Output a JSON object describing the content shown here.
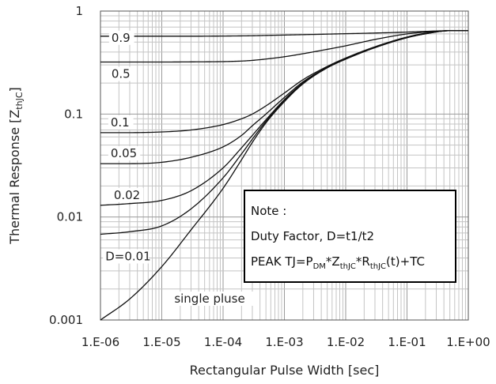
{
  "chart_data": {
    "type": "line",
    "xscale": "log",
    "yscale": "log",
    "xlim": [
      1e-06,
      1
    ],
    "ylim": [
      0.001,
      1
    ],
    "xlabel": "Rectangular Pulse Width [sec]",
    "ylabel_main": "Thermal Response [Z",
    "ylabel_sub": "thJC",
    "ylabel_end": "]",
    "x_tick_labels": [
      "1.E-06",
      "1.E-05",
      "1.E-04",
      "1.E-03",
      "1.E-02",
      "1.E-01",
      "1.E+00"
    ],
    "y_tick_labels": [
      "0.001",
      "0.01",
      "0.1",
      "1"
    ],
    "grid": true,
    "x": [
      1e-06,
      3e-06,
      1e-05,
      3e-05,
      0.0001,
      0.0002,
      0.0003,
      0.0005,
      0.001,
      0.002,
      0.005,
      0.01,
      0.03,
      0.1,
      0.2,
      0.5,
      1
    ],
    "series": [
      {
        "label": "0.9",
        "values": [
          0.57,
          0.57,
          0.57,
          0.57,
          0.572,
          0.574,
          0.576,
          0.58,
          0.585,
          0.59,
          0.597,
          0.603,
          0.612,
          0.625,
          0.635,
          0.645,
          0.645
        ]
      },
      {
        "label": "0.5",
        "values": [
          0.32,
          0.32,
          0.32,
          0.321,
          0.323,
          0.327,
          0.332,
          0.342,
          0.36,
          0.385,
          0.425,
          0.46,
          0.53,
          0.6,
          0.625,
          0.645,
          0.645
        ]
      },
      {
        "label": "0.1",
        "values": [
          0.066,
          0.066,
          0.067,
          0.07,
          0.079,
          0.09,
          0.1,
          0.12,
          0.16,
          0.215,
          0.29,
          0.35,
          0.45,
          0.56,
          0.61,
          0.645,
          0.645
        ]
      },
      {
        "label": "0.05",
        "values": [
          0.033,
          0.033,
          0.034,
          0.038,
          0.048,
          0.062,
          0.077,
          0.1,
          0.145,
          0.205,
          0.285,
          0.345,
          0.445,
          0.555,
          0.605,
          0.645,
          0.645
        ]
      },
      {
        "label": "0.02",
        "values": [
          0.013,
          0.0135,
          0.0145,
          0.018,
          0.03,
          0.047,
          0.062,
          0.088,
          0.138,
          0.2,
          0.283,
          0.343,
          0.443,
          0.553,
          0.603,
          0.645,
          0.645
        ]
      },
      {
        "label": "D=0.01",
        "values": [
          0.0068,
          0.0072,
          0.0082,
          0.012,
          0.024,
          0.041,
          0.057,
          0.085,
          0.135,
          0.198,
          0.282,
          0.342,
          0.442,
          0.552,
          0.602,
          0.645,
          0.645
        ]
      },
      {
        "label": "single pluse",
        "values": [
          0.001,
          0.0016,
          0.0033,
          0.0075,
          0.019,
          0.036,
          0.053,
          0.082,
          0.132,
          0.196,
          0.281,
          0.341,
          0.441,
          0.551,
          0.601,
          0.645,
          0.645
        ]
      }
    ],
    "note": {
      "title": "Note :",
      "line1": "Duty Factor, D=t1/t2",
      "line2_parts": [
        {
          "t": "PEAK TJ=P",
          "sub": false
        },
        {
          "t": "DM",
          "sub": true
        },
        {
          "t": "*Z",
          "sub": false
        },
        {
          "t": "thJC",
          "sub": true
        },
        {
          "t": "*R",
          "sub": false
        },
        {
          "t": "thJC",
          "sub": true
        },
        {
          "t": "(t)+TC",
          "sub": false
        }
      ]
    }
  }
}
